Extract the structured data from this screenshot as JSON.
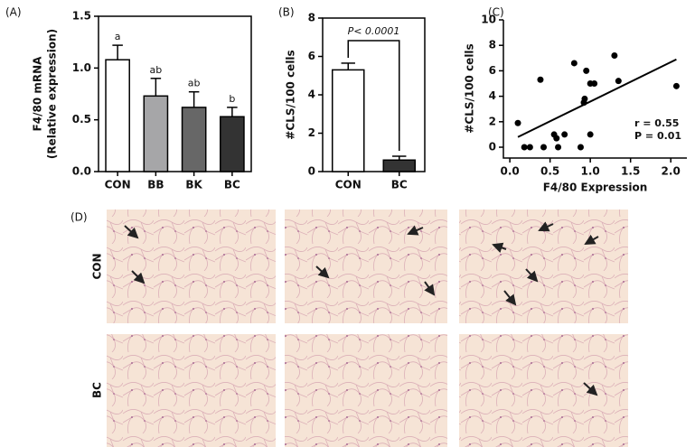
{
  "chart_data": [
    {
      "type": "bar",
      "label": "(A)",
      "ylabel": [
        "F4/80 mRNA",
        "(Relative expression)"
      ],
      "categories": [
        "CON",
        "BB",
        "BK",
        "BC"
      ],
      "values": [
        1.08,
        0.73,
        0.62,
        0.53
      ],
      "errors": [
        0.14,
        0.17,
        0.15,
        0.09
      ],
      "colors": [
        "#ffffff",
        "#a6a6a8",
        "#676767",
        "#333333"
      ],
      "annotations": [
        "a",
        "ab",
        "ab",
        "b"
      ],
      "ylim": [
        0,
        1.5
      ],
      "yticks": [
        {
          "value": 0,
          "label": "0.0"
        },
        0.5,
        {
          "value": 1,
          "label": "1.0"
        },
        1.5
      ],
      "frame": true
    },
    {
      "type": "bar",
      "label": "(B)",
      "ylabel": [
        "#CLS/100 cells"
      ],
      "categories": [
        "CON",
        "BC"
      ],
      "values": [
        5.3,
        0.6
      ],
      "errors": [
        0.35,
        0.2
      ],
      "colors": [
        "#ffffff",
        "#333333"
      ],
      "comparison": "P< 0.0001",
      "ylim": [
        0,
        8
      ],
      "yticks": [
        0,
        2,
        4,
        6,
        8
      ],
      "frame": true
    },
    {
      "type": "scatter",
      "label": "(C)",
      "xlabel": "F4/80 Expression",
      "ylabel": [
        "#CLS/100 cells"
      ],
      "x": [
        0.1,
        0.18,
        0.25,
        0.38,
        0.42,
        0.55,
        0.58,
        0.6,
        0.68,
        0.8,
        0.88,
        0.92,
        0.93,
        0.95,
        1.0,
        1.0,
        1.05,
        1.3,
        1.35,
        2.07
      ],
      "values": [
        1.9,
        0,
        0,
        5.3,
        0,
        1,
        0.7,
        0,
        1,
        6.6,
        0,
        3.5,
        3.8,
        6,
        5,
        1,
        5,
        7.2,
        5.2,
        4.8
      ],
      "color": "#000000",
      "fit": {
        "x": [
          0.1,
          2.07
        ],
        "y": [
          0.8,
          6.9
        ]
      },
      "annotations": [
        "r = 0.55",
        "P = 0.01"
      ],
      "xlim": [
        -0.08,
        2.2
      ],
      "xticks": [
        {
          "value": 0,
          "label": "0.0"
        },
        0.5,
        {
          "value": 1,
          "label": "1.0"
        },
        1.5,
        {
          "value": 2,
          "label": "2.0"
        }
      ],
      "ylim": [
        -0.85,
        10
      ],
      "yticks": [
        0,
        2,
        4,
        6,
        8,
        10
      ],
      "frame": false
    }
  ],
  "micrographs": {
    "label": "(D)",
    "rows": [
      "CON",
      "BC"
    ]
  }
}
